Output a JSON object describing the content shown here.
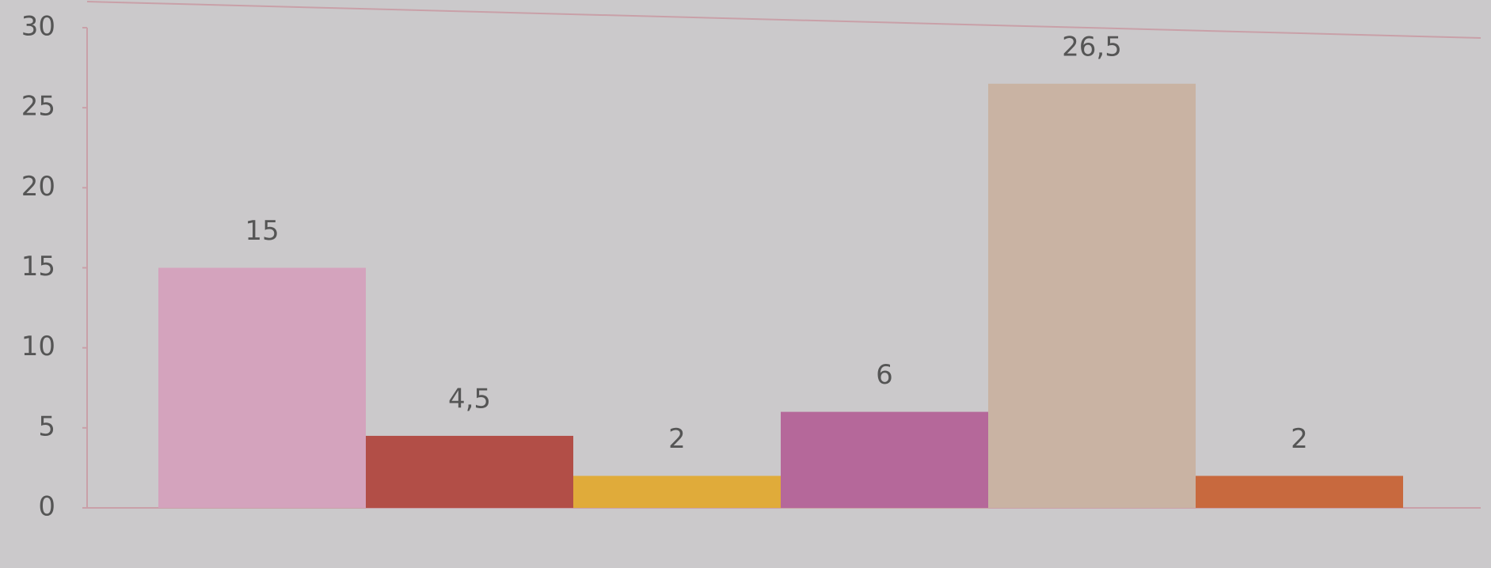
{
  "chart_data": {
    "type": "bar",
    "values": [
      15,
      4.5,
      2,
      6,
      26.5,
      2
    ],
    "value_labels": [
      "15",
      "4,5",
      "2",
      "6",
      "26,5",
      "2"
    ],
    "colors": [
      "#d4a3bd",
      "#b24e47",
      "#e0ab3a",
      "#b5689a",
      "#c9b3a3",
      "#c8693e"
    ],
    "ylim": [
      0,
      30
    ],
    "yticks": [
      0,
      5,
      10,
      15,
      20,
      25,
      30
    ]
  }
}
